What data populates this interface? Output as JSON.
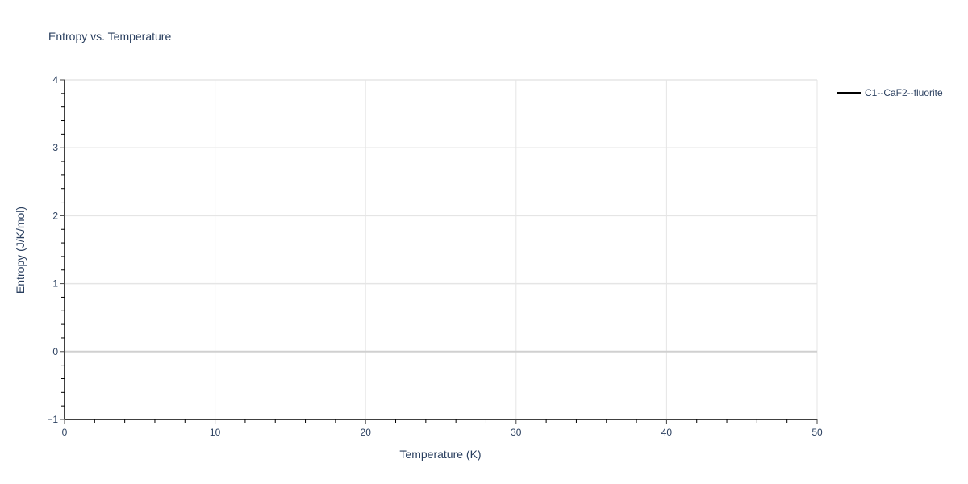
{
  "chart_data": {
    "type": "line",
    "title": "Entropy vs. Temperature",
    "xlabel": "Temperature (K)",
    "ylabel": "Entropy (J/K/mol)",
    "xlim": [
      0,
      50
    ],
    "ylim": [
      -1,
      4
    ],
    "xticks": [
      0,
      10,
      20,
      30,
      40,
      50
    ],
    "yticks": [
      -1,
      0,
      1,
      2,
      3,
      4
    ],
    "ytick_labels": [
      "−1",
      "0",
      "1",
      "2",
      "3",
      "4"
    ],
    "x_minor_step": 2,
    "y_minor_step": 0.2,
    "grid": true,
    "legend_placement": "top-right outside",
    "series": [
      {
        "name": "C1--CaF2--fluorite",
        "color": "#000000",
        "x": [],
        "y": []
      }
    ]
  }
}
